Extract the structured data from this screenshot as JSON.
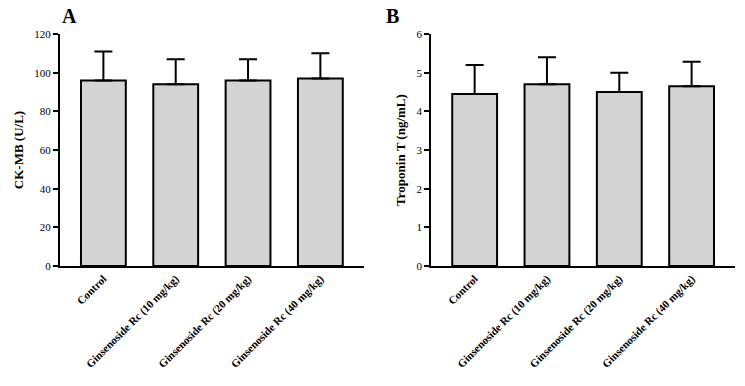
{
  "chart_data": [
    {
      "type": "bar",
      "title": "A",
      "categories": [
        "Control",
        "Ginsenoside Rc (10 mg/kg)",
        "Ginsenoside Rc (20 mg/kg)",
        "Ginsenoside Rc (40 mg/kg)"
      ],
      "values": [
        96,
        94,
        96,
        97
      ],
      "errors": [
        15,
        13,
        11,
        13
      ],
      "y_label": "CK-MB (U/L)",
      "color": "#d3d3d3",
      "ylim": [
        0,
        120
      ],
      "yticks": [
        0,
        20,
        40,
        60,
        80,
        100,
        120
      ],
      "grid": false
    },
    {
      "type": "bar",
      "title": "B",
      "categories": [
        "Control",
        "Ginsenoside Rc (10 mg/kg)",
        "Ginsenoside Rc (20 mg/kg)",
        "Ginsenoside Rc (40 mg/kg)"
      ],
      "values": [
        4.45,
        4.7,
        4.5,
        4.65
      ],
      "errors": [
        0.75,
        0.7,
        0.5,
        0.63
      ],
      "y_label": "Troponin T (ng/mL)",
      "color": "#d3d3d3",
      "ylim": [
        0,
        6
      ],
      "yticks": [
        0,
        1,
        2,
        3,
        4,
        5,
        6
      ],
      "grid": false
    }
  ]
}
